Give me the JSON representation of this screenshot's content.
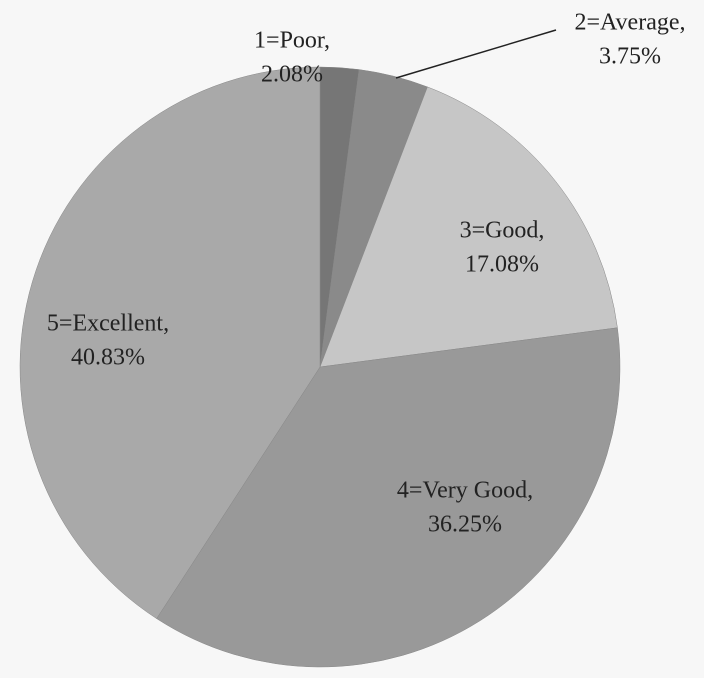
{
  "chart_data": {
    "type": "pie",
    "categories": [
      "1=Poor,",
      "2=Average,",
      "3=Good,",
      "4=Very Good,",
      "5=Excellent,"
    ],
    "values": [
      2.08,
      3.75,
      17.08,
      36.25,
      40.83
    ],
    "value_labels": [
      "2.08%",
      "3.75%",
      "17.08%",
      "36.25%",
      "40.83%"
    ],
    "colors": [
      "#767676",
      "#8a8a8a",
      "#c6c6c6",
      "#999999",
      "#a9a9a9"
    ]
  }
}
